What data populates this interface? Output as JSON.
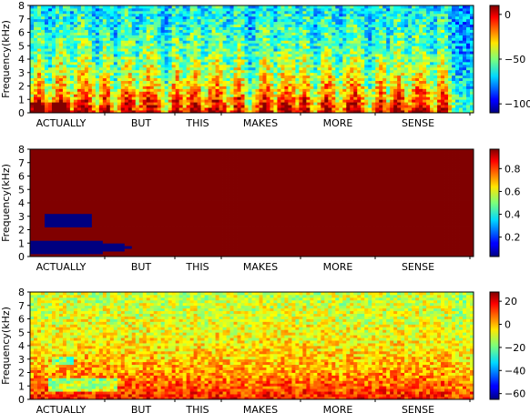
{
  "chart_data": [
    {
      "type": "heatmap",
      "ylabel": "Frequency(kHz)",
      "yticks": [
        0,
        1,
        2,
        3,
        4,
        5,
        6,
        7,
        8
      ],
      "ylim": [
        0,
        8
      ],
      "word_labels": [
        "ACTUALLY",
        "BUT",
        "THIS",
        "MAKES",
        "MORE",
        "SENSE"
      ],
      "colorbar": {
        "ticks": [
          0,
          -50,
          -100
        ],
        "range": [
          -110,
          10
        ],
        "colormap": "jet"
      }
    },
    {
      "type": "heatmap",
      "ylabel": "Frequency(kHz)",
      "yticks": [
        0,
        1,
        2,
        3,
        4,
        5,
        6,
        7,
        8
      ],
      "ylim": [
        0,
        8
      ],
      "word_labels": [
        "ACTUALLY",
        "BUT",
        "THIS",
        "MAKES",
        "MORE",
        "SENSE"
      ],
      "colorbar": {
        "ticks": [
          0.8,
          0.6,
          0.4,
          0.2
        ],
        "range": [
          0.03,
          0.97
        ],
        "colormap": "jet"
      }
    },
    {
      "type": "heatmap",
      "ylabel": "Frequency(kHz)",
      "yticks": [
        0,
        1,
        2,
        3,
        4,
        5,
        6,
        7,
        8
      ],
      "ylim": [
        0,
        8
      ],
      "word_labels": [
        "ACTUALLY",
        "BUT",
        "THIS",
        "MAKES",
        "MORE",
        "SENSE"
      ],
      "colorbar": {
        "ticks": [
          20,
          0,
          -20,
          -40,
          -60
        ],
        "range": [
          -65,
          28
        ],
        "colormap": "jet"
      }
    }
  ]
}
